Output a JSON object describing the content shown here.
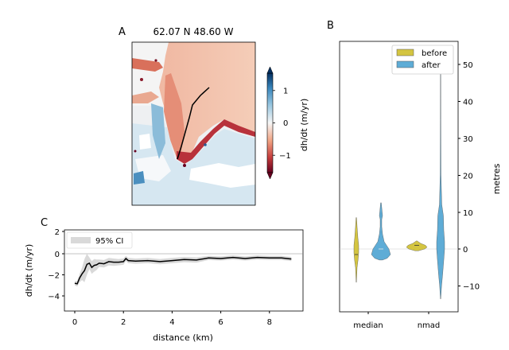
{
  "panels": {
    "a": {
      "letter": "A",
      "title": "62.07 N 48.60 W",
      "colorbar": {
        "label": "dh/dt (m/yr)",
        "ticks": [
          "1",
          "0",
          "−1"
        ],
        "range": [
          -1.5,
          1.5
        ],
        "cmap": "RdBu"
      }
    },
    "b": {
      "letter": "B",
      "ylabel": "metres",
      "yticks": [
        "50",
        "40",
        "30",
        "20",
        "10",
        "0",
        "−10"
      ],
      "categories": [
        "median",
        "nmad"
      ],
      "legend": [
        {
          "label": "before",
          "color": "#d4c541"
        },
        {
          "label": "after",
          "color": "#5eacd6"
        }
      ]
    },
    "c": {
      "letter": "C",
      "xlabel": "distance (km)",
      "ylabel": "dh/dt (m/yr)",
      "xticks": [
        "0",
        "2",
        "4",
        "6",
        "8"
      ],
      "yticks": [
        "2",
        "0",
        "−2",
        "−4"
      ],
      "legend": "95% CI"
    }
  },
  "chart_data": [
    {
      "type": "line",
      "panel": "C",
      "xlabel": "distance (km)",
      "ylabel": "dh/dt (m/yr)",
      "xlim": [
        -0.45,
        9.45
      ],
      "ylim": [
        -5.2,
        2.2
      ],
      "grid": false,
      "legend_position": "upper-left",
      "series": [
        {
          "x": [
            0,
            0.1,
            0.2,
            0.3,
            0.4,
            0.5,
            0.6,
            0.7,
            0.8,
            0.9,
            1.0,
            1.2,
            1.4,
            1.6,
            1.8,
            2.0,
            2.1,
            2.2,
            2.5,
            3.0,
            3.5,
            4.0,
            4.5,
            5.0,
            5.5,
            6.0,
            6.5,
            7.0,
            7.5,
            8.0,
            8.5,
            8.9
          ],
          "y": [
            -2.8,
            -2.85,
            -2.3,
            -1.9,
            -1.6,
            -1.0,
            -0.9,
            -1.3,
            -1.1,
            -1.05,
            -0.9,
            -0.95,
            -0.75,
            -0.8,
            -0.8,
            -0.75,
            -0.45,
            -0.65,
            -0.7,
            -0.65,
            -0.75,
            -0.65,
            -0.55,
            -0.6,
            -0.4,
            -0.45,
            -0.35,
            -0.45,
            -0.35,
            -0.4,
            -0.4,
            -0.5
          ]
        }
      ],
      "ci": {
        "upper": [
          -2.6,
          -2.6,
          -1.9,
          -1.3,
          -0.5,
          0.0,
          -0.35,
          -0.7,
          -0.5,
          -0.55,
          -0.55,
          -0.6,
          -0.4,
          -0.45,
          -0.5,
          -0.45,
          -0.2,
          -0.4,
          -0.45,
          -0.4,
          -0.5,
          -0.4,
          -0.3,
          -0.35,
          -0.2,
          -0.25,
          -0.15,
          -0.25,
          -0.15,
          -0.2,
          -0.2,
          -0.3
        ],
        "lower": [
          -3.0,
          -3.1,
          -2.7,
          -2.5,
          -2.7,
          -2.0,
          -1.45,
          -1.9,
          -1.7,
          -1.55,
          -1.25,
          -1.3,
          -1.1,
          -1.15,
          -1.1,
          -1.05,
          -0.7,
          -0.9,
          -0.95,
          -0.9,
          -1.0,
          -0.9,
          -0.8,
          -0.85,
          -0.6,
          -0.65,
          -0.55,
          -0.65,
          -0.55,
          -0.6,
          -0.6,
          -0.7
        ]
      }
    },
    {
      "type": "violin",
      "panel": "B",
      "ylabel": "metres",
      "ylim": [
        -17,
        56
      ],
      "categories": [
        "median",
        "nmad"
      ],
      "series": [
        {
          "name": "before",
          "median_range": [
            -9,
            8.5
          ],
          "nmad_range": [
            -0.5,
            2.2
          ]
        },
        {
          "name": "after",
          "median_range": [
            -3,
            12.5
          ],
          "nmad_range": [
            -13.5,
            48
          ]
        }
      ]
    }
  ]
}
